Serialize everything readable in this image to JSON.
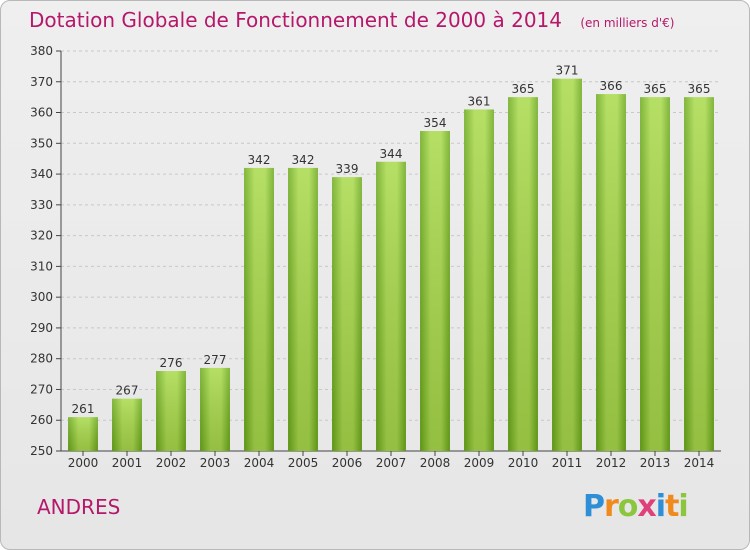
{
  "header": {
    "title": "Dotation Globale de Fonctionnement de 2000 à 2014",
    "unit": "(en milliers d'€)"
  },
  "footer": {
    "commune": "ANDRES",
    "logo_text": "Proxiti"
  },
  "colors": {
    "title": "#b5186b",
    "bar_light": "#a8d94a",
    "bar_dark": "#6aa91a",
    "grid": "#c8c8c8",
    "axis": "#444444",
    "logo_P": "#2e8fd6",
    "logo_r": "#f08a1c",
    "logo_o": "#8cc63f",
    "logo_x": "#e0407a",
    "logo_i": "#2e8fd6",
    "logo_t": "#f08a1c",
    "logo_i2": "#8cc63f"
  },
  "chart_data": {
    "type": "bar",
    "title": "Dotation Globale de Fonctionnement de 2000 à 2014",
    "subtitle": "(en milliers d'€)",
    "xlabel": "",
    "ylabel": "",
    "categories": [
      "2000",
      "2001",
      "2002",
      "2003",
      "2004",
      "2005",
      "2006",
      "2007",
      "2008",
      "2009",
      "2010",
      "2011",
      "2012",
      "2013",
      "2014"
    ],
    "values": [
      261,
      267,
      276,
      277,
      342,
      342,
      339,
      344,
      354,
      361,
      365,
      371,
      366,
      365,
      365
    ],
    "ylim": [
      250,
      380
    ],
    "yticks": [
      250,
      260,
      270,
      280,
      290,
      300,
      310,
      320,
      330,
      340,
      350,
      360,
      370,
      380
    ],
    "grid": "horizontal",
    "data_labels": true
  }
}
